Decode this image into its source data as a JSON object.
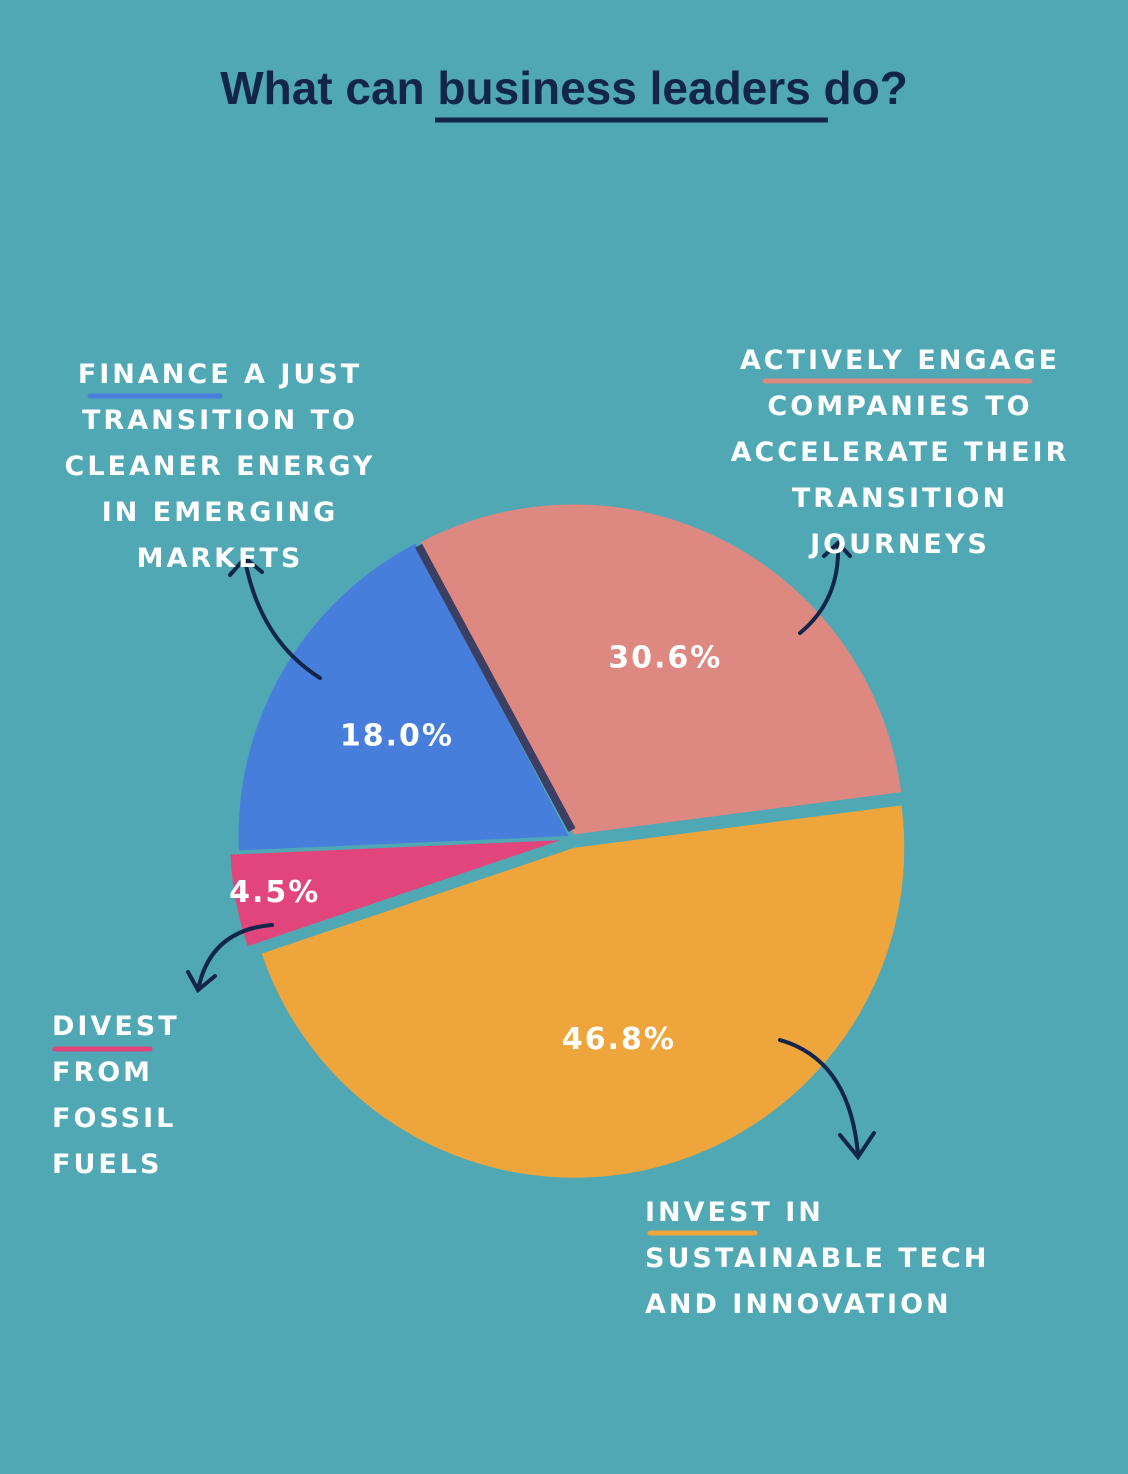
{
  "chart_data": {
    "type": "pie",
    "title": "What can business leaders do?",
    "categories": [
      "FINANCE A JUST TRANSITION TO CLEANER ENERGY IN EMERGING MARKETS",
      "ACTIVELY ENGAGE COMPANIES TO ACCELERATE THEIR TRANSITION JOURNEYS",
      "INVEST IN SUSTAINABLE TECH AND INNOVATION",
      "DIVEST FROM FOSSIL FUELS"
    ],
    "values": [
      18.0,
      30.6,
      46.8,
      4.5
    ],
    "value_labels": [
      "18.0%",
      "30.6%",
      "46.8%",
      "4.5%"
    ],
    "colors": [
      "#477edb",
      "#dd8880",
      "#eea53c",
      "#e2457b"
    ]
  }
}
